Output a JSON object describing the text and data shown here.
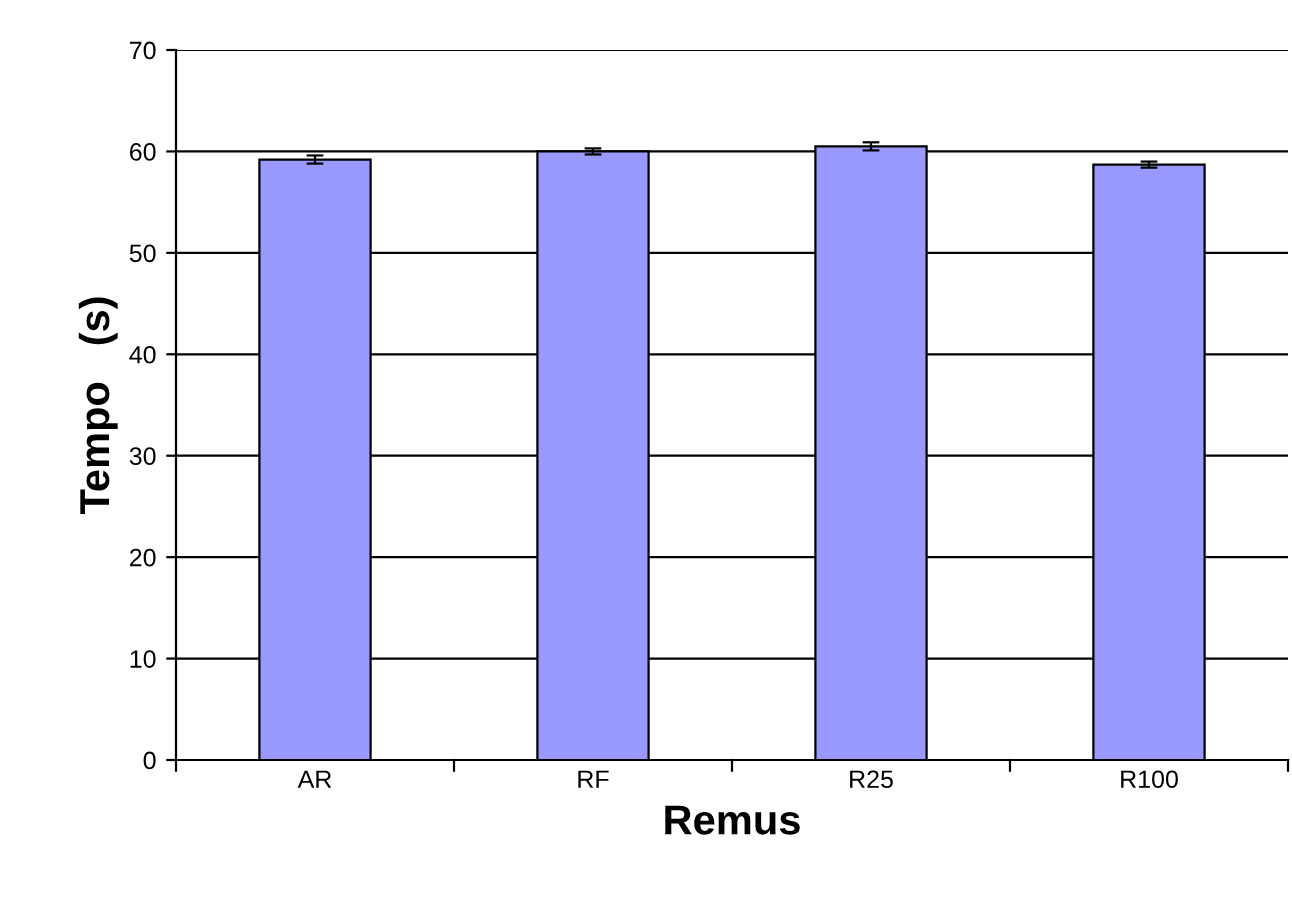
{
  "chart_data": {
    "type": "bar",
    "xlabel": "Remus",
    "ylabel": "Tempo   (s)",
    "categories": [
      "AR",
      "RF",
      "R25",
      "R100"
    ],
    "values": [
      59.2,
      60.0,
      60.5,
      58.7
    ],
    "errors": [
      0.4,
      0.3,
      0.4,
      0.3
    ],
    "color": "#9999ff",
    "ylim": [
      0,
      70
    ],
    "yticks": [
      0,
      10,
      20,
      30,
      40,
      50,
      60,
      70
    ],
    "grid": "y"
  }
}
